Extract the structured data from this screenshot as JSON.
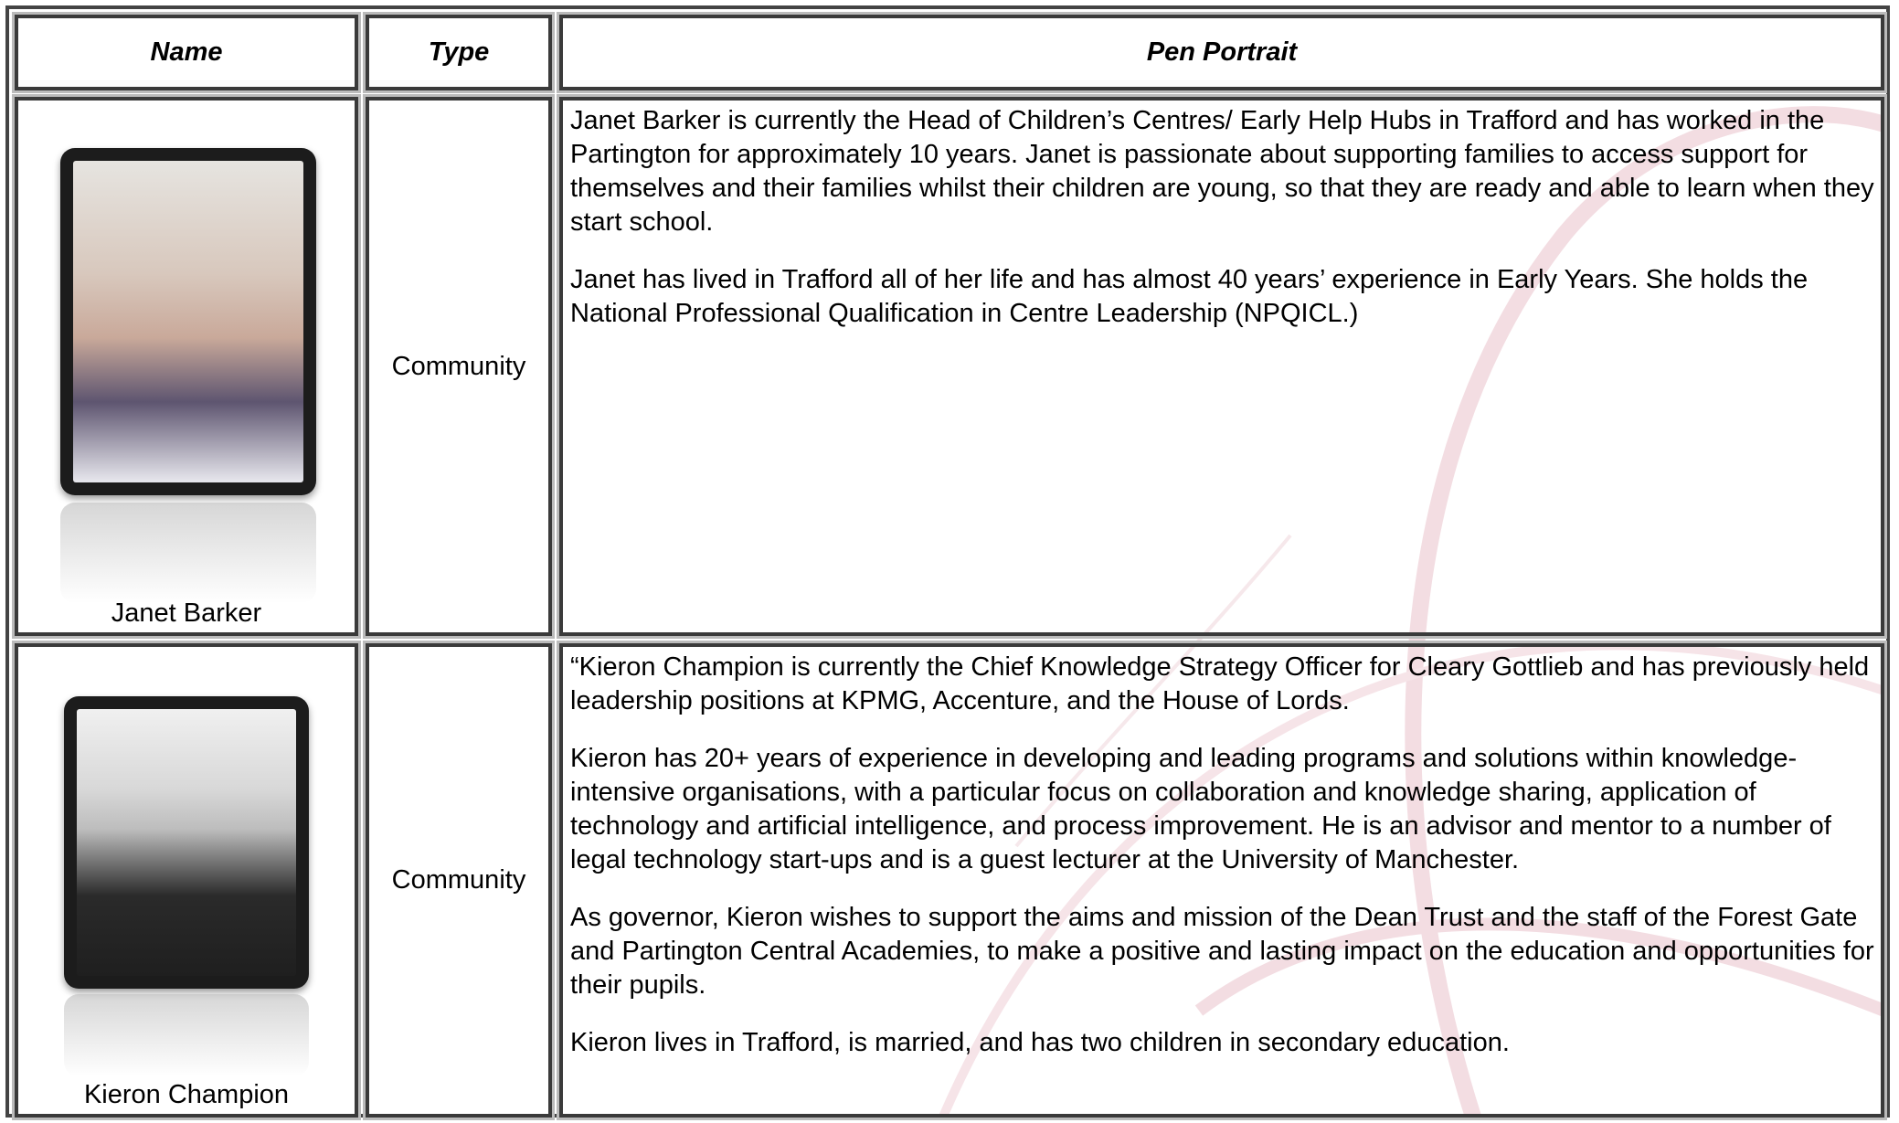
{
  "header": {
    "columns": [
      "Name",
      "Type",
      "Pen Portrait"
    ]
  },
  "rows": [
    {
      "name": "Janet Barker",
      "type": "Community",
      "paragraphs": [
        "Janet Barker is currently the Head of Children’s Centres/ Early Help Hubs in Trafford and has worked in the Partington for approximately 10 years.  Janet is passionate about supporting families to access support for themselves and their families whilst their children are young, so that they are ready and able to learn when they start school.",
        "Janet has lived in Trafford all of her life and has almost 40 years’ experience in Early Years.    She holds the National Professional Qualification in Centre Leadership (NPQICL.)"
      ]
    },
    {
      "name": "Kieron Champion",
      "type": "Community",
      "paragraphs": [
        "“Kieron Champion is currently the Chief Knowledge Strategy Officer for Cleary Gottlieb and has previously held leadership positions at KPMG, Accenture, and the House of Lords.",
        "Kieron has 20+ years of experience in developing and leading programs and solutions within knowledge-intensive organisations, with a particular focus on collaboration and knowledge sharing, application of technology and artificial intelligence, and process improvement. He is an advisor and mentor to a number of legal technology start-ups and is a guest lecturer at the University of Manchester.",
        "As governor, Kieron wishes to support the aims and mission of the Dean Trust and the staff of the Forest Gate and Partington Central Academies, to make a positive and lasting impact on the education and opportunities for their pupils.",
        "Kieron lives in Trafford, is married, and has two children in secondary education."
      ]
    }
  ]
}
